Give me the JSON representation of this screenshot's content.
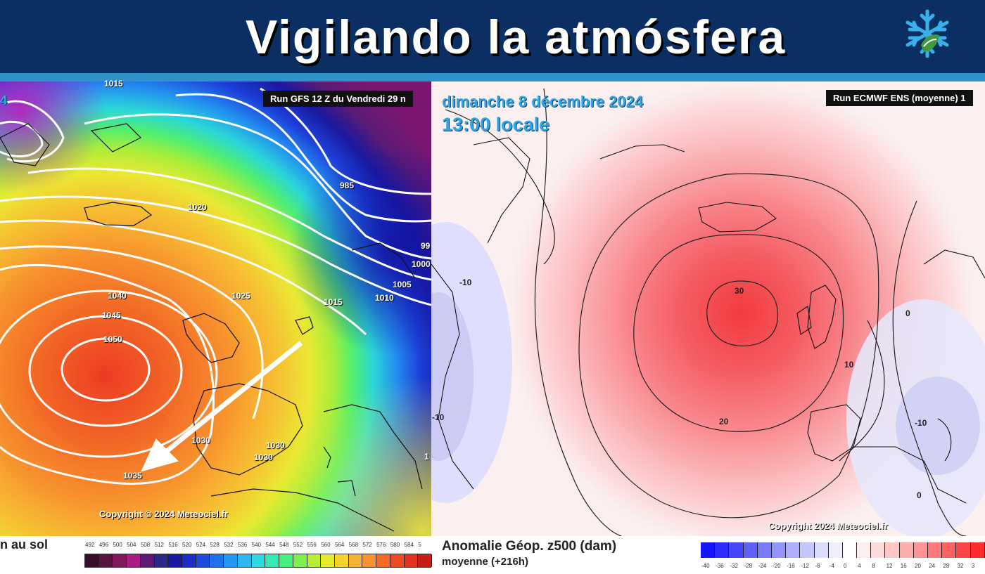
{
  "banner": {
    "title": "Vigilando la atmósfera",
    "logo": "snowflake-logo-icon",
    "background": "#0c2f63",
    "accent": "#2f93c9"
  },
  "left_map": {
    "corner_fragment": "4",
    "run_label": "Run GFS 12 Z du Vendredi 29 n",
    "isobar_labels": [
      "1015",
      "1020",
      "985",
      "99",
      "1000",
      "1005",
      "1010",
      "1015",
      "1025",
      "1040",
      "1045",
      "1050",
      "1030",
      "1030",
      "1030",
      "1035",
      "1"
    ],
    "copyright": "Copyright © 2024 Meteociel.fr",
    "bottom_label": "n au sol",
    "scale_ticks": [
      "492",
      "496",
      "500",
      "504",
      "508",
      "512",
      "516",
      "520",
      "524",
      "528",
      "532",
      "536",
      "540",
      "544",
      "548",
      "552",
      "556",
      "560",
      "564",
      "568",
      "572",
      "576",
      "580",
      "584",
      "5"
    ],
    "scale_colors": [
      "#3a0d2c",
      "#5a1440",
      "#80195e",
      "#a81e84",
      "#5c1a72",
      "#2a2a8a",
      "#1a1aa0",
      "#1c2cc8",
      "#1c4be0",
      "#1f70f0",
      "#2696f5",
      "#2cb8ef",
      "#2ed8e0",
      "#36e8b6",
      "#45ee7d",
      "#7ef04b",
      "#b8ef32",
      "#e8ea30",
      "#f6d231",
      "#f8b232",
      "#f7922e",
      "#f26a26",
      "#ee4a22",
      "#e3301f",
      "#c81c1c"
    ]
  },
  "right_map": {
    "date": "dimanche 8 décembre 2024",
    "time": "13:00 locale",
    "run_label": "Run ECMWF ENS (moyenne) 1",
    "contour_labels": [
      "-10",
      "0",
      "30",
      "10",
      "20",
      "-10",
      "-10",
      "0"
    ],
    "copyright": "Copyright 2024 Meteociel.fr",
    "title": "Anomalie Géop. z500 (dam)",
    "subtitle": "moyenne  (+216h)",
    "scale_ticks": [
      "-40",
      "-36",
      "-32",
      "-28",
      "-24",
      "-20",
      "-16",
      "-12",
      "-8",
      "-4",
      "0",
      "4",
      "8",
      "12",
      "16",
      "20",
      "24",
      "28",
      "32",
      "3"
    ],
    "scale_colors": [
      "#1414ff",
      "#2c2cff",
      "#4646ff",
      "#6060ff",
      "#7a7aff",
      "#9494ff",
      "#aeaeff",
      "#c6c6ff",
      "#dcdcff",
      "#eeeeff",
      "#ffffff",
      "#ffeeee",
      "#ffdcdc",
      "#ffc6c6",
      "#ffaeae",
      "#ff9494",
      "#ff7a7a",
      "#ff6060",
      "#ff4646",
      "#ff2c2c"
    ]
  }
}
